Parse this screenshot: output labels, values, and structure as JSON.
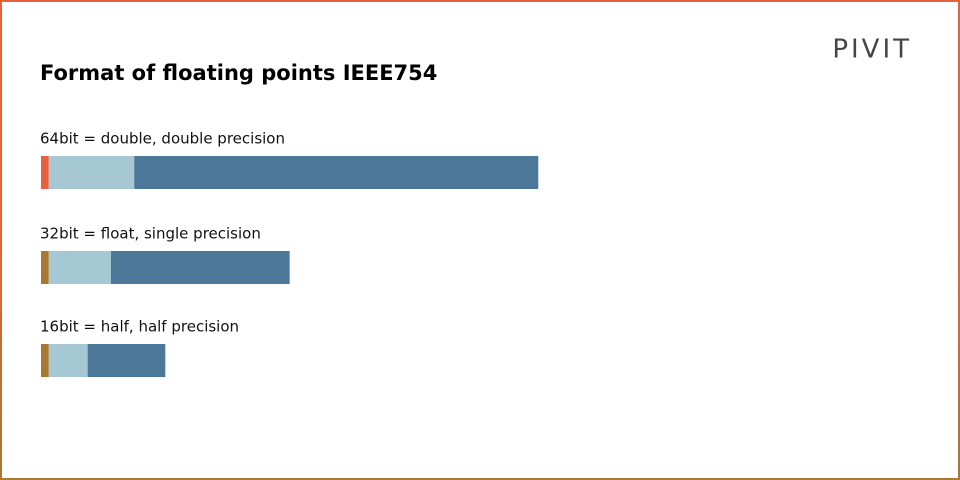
{
  "chart_data": {
    "type": "bar",
    "orientation": "horizontal",
    "stacked": true,
    "title": "Format of floating points IEEE754",
    "logo": "PIVIT",
    "categories": [
      "64bit = double, double precision",
      "32bit = float, single precision",
      "16bit = half, half precision"
    ],
    "series": [
      {
        "colors": [
          "#e8613a",
          "#a8792f",
          "#a8792f"
        ],
        "values": [
          1,
          1,
          1
        ]
      },
      {
        "color": "#a6c8d5",
        "values": [
          11,
          8,
          5
        ]
      },
      {
        "color": "#4b7898",
        "values": [
          52,
          23,
          10
        ]
      }
    ]
  }
}
